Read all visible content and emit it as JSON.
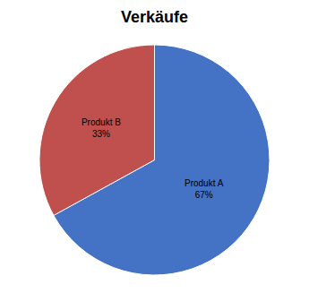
{
  "chart_data": {
    "type": "pie",
    "title": "Verkäufe",
    "categories": [
      "Produkt A",
      "Produkt B"
    ],
    "values": [
      67,
      33
    ],
    "value_labels": [
      "67%",
      "33%"
    ],
    "colors": [
      "#4472C4",
      "#C0504D"
    ],
    "data_labels": true
  }
}
